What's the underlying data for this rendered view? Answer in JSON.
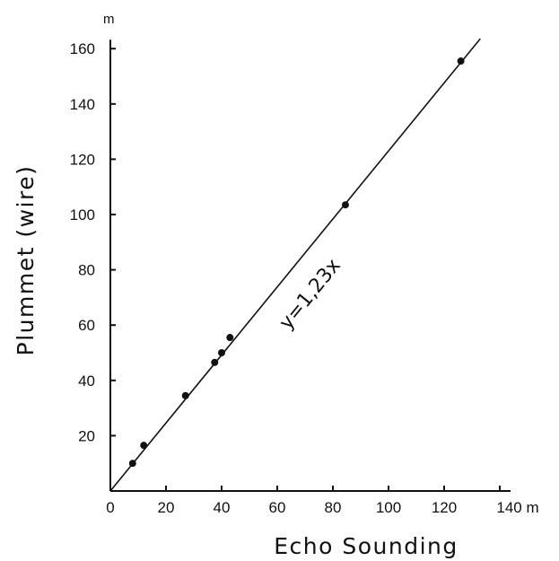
{
  "chart_data": {
    "type": "scatter",
    "xlabel": "Echo Sounding",
    "ylabel": "Plummet (wire)",
    "x_unit": "m",
    "y_unit": "m",
    "xlim": [
      0,
      140
    ],
    "ylim": [
      0,
      160
    ],
    "x_ticks": [
      "0",
      "20",
      "40",
      "60",
      "80",
      "100",
      "120",
      "140 m"
    ],
    "y_ticks": [
      "20",
      "40",
      "60",
      "80",
      "100",
      "120",
      "140",
      "160"
    ],
    "grid": false,
    "points": [
      {
        "x": 8,
        "y": 10
      },
      {
        "x": 12,
        "y": 16.5
      },
      {
        "x": 27,
        "y": 34.5
      },
      {
        "x": 37.5,
        "y": 46.5
      },
      {
        "x": 40,
        "y": 50
      },
      {
        "x": 43,
        "y": 55.5
      },
      {
        "x": 84.5,
        "y": 103.5
      },
      {
        "x": 126,
        "y": 155.5
      }
    ],
    "fit_line": {
      "slope": 1.23,
      "x_range": [
        0,
        133
      ]
    },
    "annotation": "y=1,23x"
  }
}
